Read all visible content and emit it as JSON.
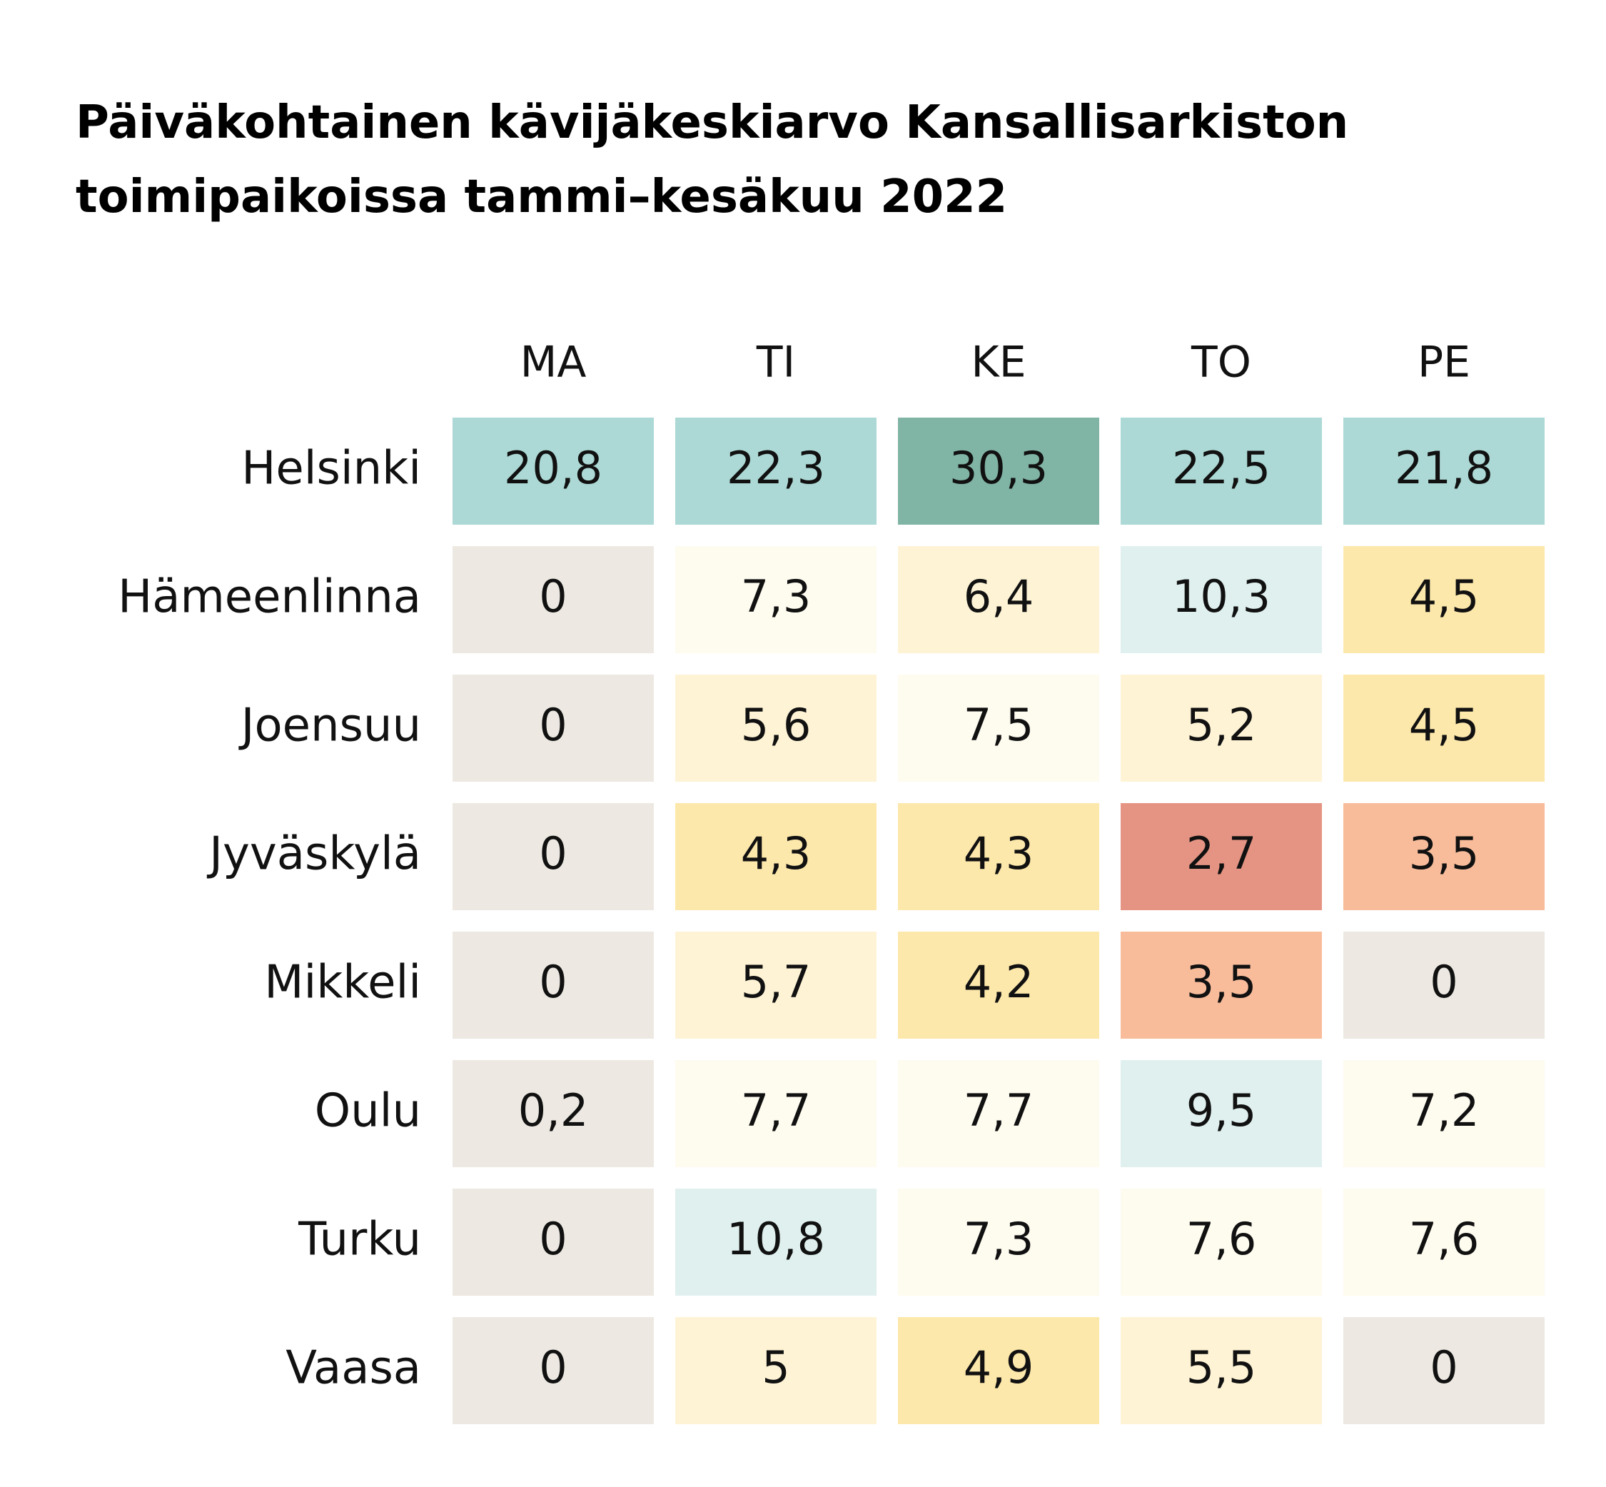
{
  "chart_data": {
    "type": "heatmap",
    "title": [
      "Päiväkohtainen kävijäkeskiarvo Kansallisarkiston",
      "toimipaikoissa tammi–kesäkuu 2022"
    ],
    "columns": [
      "MA",
      "TI",
      "KE",
      "TO",
      "PE"
    ],
    "rows": [
      {
        "name": "Helsinki",
        "labels": [
          "20,8",
          "22,3",
          "30,3",
          "22,5",
          "21,8"
        ],
        "values": [
          20.8,
          22.3,
          30.3,
          22.5,
          21.8
        ]
      },
      {
        "name": "Hämeenlinna",
        "labels": [
          "0",
          "7,3",
          "6,4",
          "10,3",
          "4,5"
        ],
        "values": [
          0,
          7.3,
          6.4,
          10.3,
          4.5
        ]
      },
      {
        "name": "Joensuu",
        "labels": [
          "0",
          "5,6",
          "7,5",
          "5,2",
          "4,5"
        ],
        "values": [
          0,
          5.6,
          7.5,
          5.2,
          4.5
        ]
      },
      {
        "name": "Jyväskylä",
        "labels": [
          "0",
          "4,3",
          "4,3",
          "2,7",
          "3,5"
        ],
        "values": [
          0,
          4.3,
          4.3,
          2.7,
          3.5
        ]
      },
      {
        "name": "Mikkeli",
        "labels": [
          "0",
          "5,7",
          "4,2",
          "3,5",
          "0"
        ],
        "values": [
          0,
          5.7,
          4.2,
          3.5,
          0
        ]
      },
      {
        "name": "Oulu",
        "labels": [
          "0,2",
          "7,7",
          "7,7",
          "9,5",
          "7,2"
        ],
        "values": [
          0.2,
          7.7,
          7.7,
          9.5,
          7.2
        ]
      },
      {
        "name": "Turku",
        "labels": [
          "0",
          "10,8",
          "7,3",
          "7,6",
          "7,6"
        ],
        "values": [
          0,
          10.8,
          7.3,
          7.6,
          7.6
        ]
      },
      {
        "name": "Vaasa",
        "labels": [
          "0",
          "5",
          "4,9",
          "5,5",
          "0"
        ],
        "values": [
          0,
          5,
          4.9,
          5.5,
          0
        ]
      }
    ],
    "colors": {
      "zero": "#ede9e2",
      "very_high": "#80b4a5",
      "high": "#acd9d5",
      "medium_high": "#dff0ee",
      "medium": "#fefbef",
      "medium_low": "#fef3d5",
      "low": "#fde8ab",
      "lower": "#f8bc9b",
      "lowest": "#e59483"
    }
  }
}
